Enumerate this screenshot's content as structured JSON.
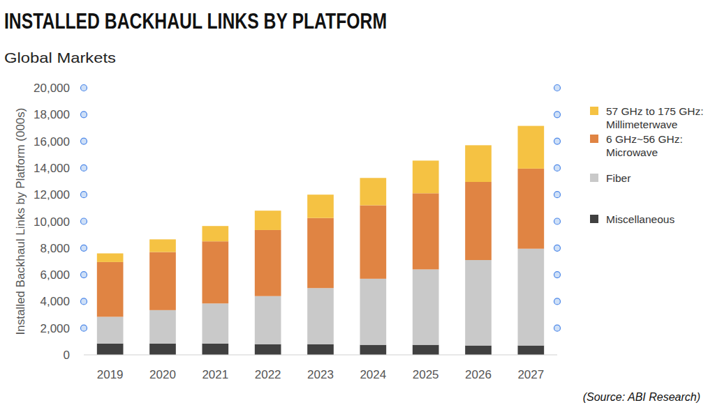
{
  "chart_data": {
    "type": "bar",
    "title": "INSTALLED BACKHAUL LINKS BY PLATFORM",
    "subtitle": "Global Markets",
    "y_label": "Installed Backhaul Links by Platform (000s)",
    "source": "(Source: ABI Research)",
    "categories": [
      "2019",
      "2020",
      "2021",
      "2022",
      "2023",
      "2024",
      "2025",
      "2026",
      "2027"
    ],
    "series": [
      {
        "name": "Miscellaneous",
        "color": "#404040",
        "values": [
          850,
          850,
          850,
          800,
          800,
          750,
          750,
          700,
          700
        ]
      },
      {
        "name": "Fiber",
        "color": "#c9c9c9",
        "values": [
          2000,
          2500,
          3000,
          3600,
          4200,
          4950,
          5650,
          6400,
          7250
        ]
      },
      {
        "name": "6 GHz~56 GHz: Microwave",
        "color": "#e08443",
        "values": [
          4100,
          4350,
          4650,
          4950,
          5250,
          5500,
          5700,
          5850,
          6000
        ]
      },
      {
        "name": "57 GHz to 175 GHz: Millimeterwave",
        "color": "#f5c243",
        "values": [
          650,
          950,
          1150,
          1450,
          1750,
          2050,
          2450,
          2750,
          3200
        ]
      }
    ],
    "stacked": true,
    "ylim": [
      0,
      20000
    ],
    "yticks": [
      0,
      {
        "value": 2000,
        "label": "2,000"
      },
      {
        "value": 4000,
        "label": "4,000"
      },
      {
        "value": 6000,
        "label": "6,000"
      },
      {
        "value": 8000,
        "label": "8,000"
      },
      {
        "value": 10000,
        "label": "10,000"
      },
      {
        "value": 12000,
        "label": "12,000"
      },
      {
        "value": 14000,
        "label": "14,000"
      },
      {
        "value": 16000,
        "label": "16,000"
      },
      {
        "value": 18000,
        "label": "18,000"
      },
      {
        "value": 20000,
        "label": "20,000"
      }
    ],
    "grid": false,
    "legend": "right"
  }
}
